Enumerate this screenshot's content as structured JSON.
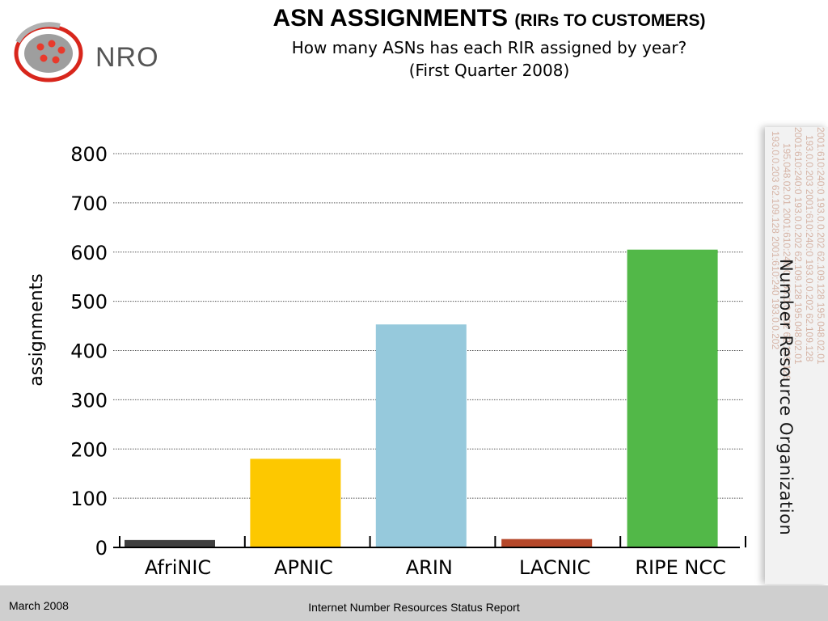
{
  "branding": {
    "logo_text": "NRO",
    "side_label": "Number Resource Organization"
  },
  "decoration": {
    "ip_lines": [
      "2001:610:240:0  193.0.0.202  62.109.128  195.048.02.01",
      "193.0.0.203  2001:610:240:0  193.0.0.202  62.109.128",
      "2001:610:240:0  193.0.0.202  62.109.128  195.048.02.01",
      "195.048.02.01  2001:610:240:0  193.0.0.202  62.109.128",
      "193.0.0.203  62.109.128  2001:610:240  193.0.0.202"
    ]
  },
  "chart_data": {
    "type": "bar",
    "title": "ASN ASSIGNMENTS",
    "title_suffix": "(RIRs TO CUSTOMERS)",
    "subtitle": "How many ASNs has each RIR assigned by year?",
    "subtitle2": "(First Quarter 2008)",
    "xlabel": "",
    "ylabel": "assignments",
    "categories": [
      "AfriNIC",
      "APNIC",
      "ARIN",
      "LACNIC",
      "RIPE NCC"
    ],
    "values": [
      15,
      180,
      453,
      17,
      605
    ],
    "colors": [
      "#3f3f3f",
      "#fdc800",
      "#96c9dc",
      "#b5482a",
      "#52b848"
    ],
    "ylim": [
      0,
      800
    ],
    "yticks": [
      0,
      100,
      200,
      300,
      400,
      500,
      600,
      700,
      800
    ],
    "ytick_labels": [
      "0",
      "100",
      "200",
      "300",
      "400",
      "500",
      "600",
      "700",
      "800"
    ],
    "grid": true
  },
  "footer": {
    "date": "March 2008",
    "report": "Internet Number Resources Status Report"
  }
}
